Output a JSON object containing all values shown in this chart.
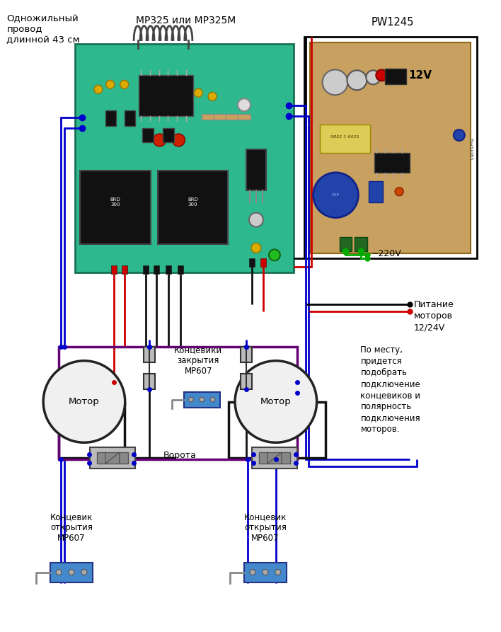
{
  "bg_color": "#ffffff",
  "label_wire": "Однoжильный\nпровод\nдлинной 43 см",
  "title_mp325": "MP325 или MP325M",
  "title_pw1245": "PW1245",
  "label_12v": "12V",
  "label_220v": "~220V",
  "label_power_motor": "Питание\nмоторов\n12/24V",
  "label_motor": "Мотор",
  "label_limit_close": "Концевики\nзакрытия\nMP607",
  "label_gates": "Ворота",
  "label_limit_open1": "Концевик\nоткрытия\nMP607",
  "label_limit_open2": "Концевик\nоткрытия\nMP607",
  "label_note": "По месту,\nпридется\nподобрать\nподключение\nконцевиков и\nполярность\nподключения\nмоторов.",
  "wire_blue": "#0000cc",
  "wire_red": "#cc0000",
  "wire_black": "#111111",
  "wire_purple": "#660077",
  "wire_green": "#00aa00",
  "board1_color": "#2db08a",
  "board2_color": "#c8a060",
  "motor_color": "#f0f0f0",
  "switch_body": "#4488cc",
  "relay_color": "#111111",
  "ic_color": "#111111"
}
